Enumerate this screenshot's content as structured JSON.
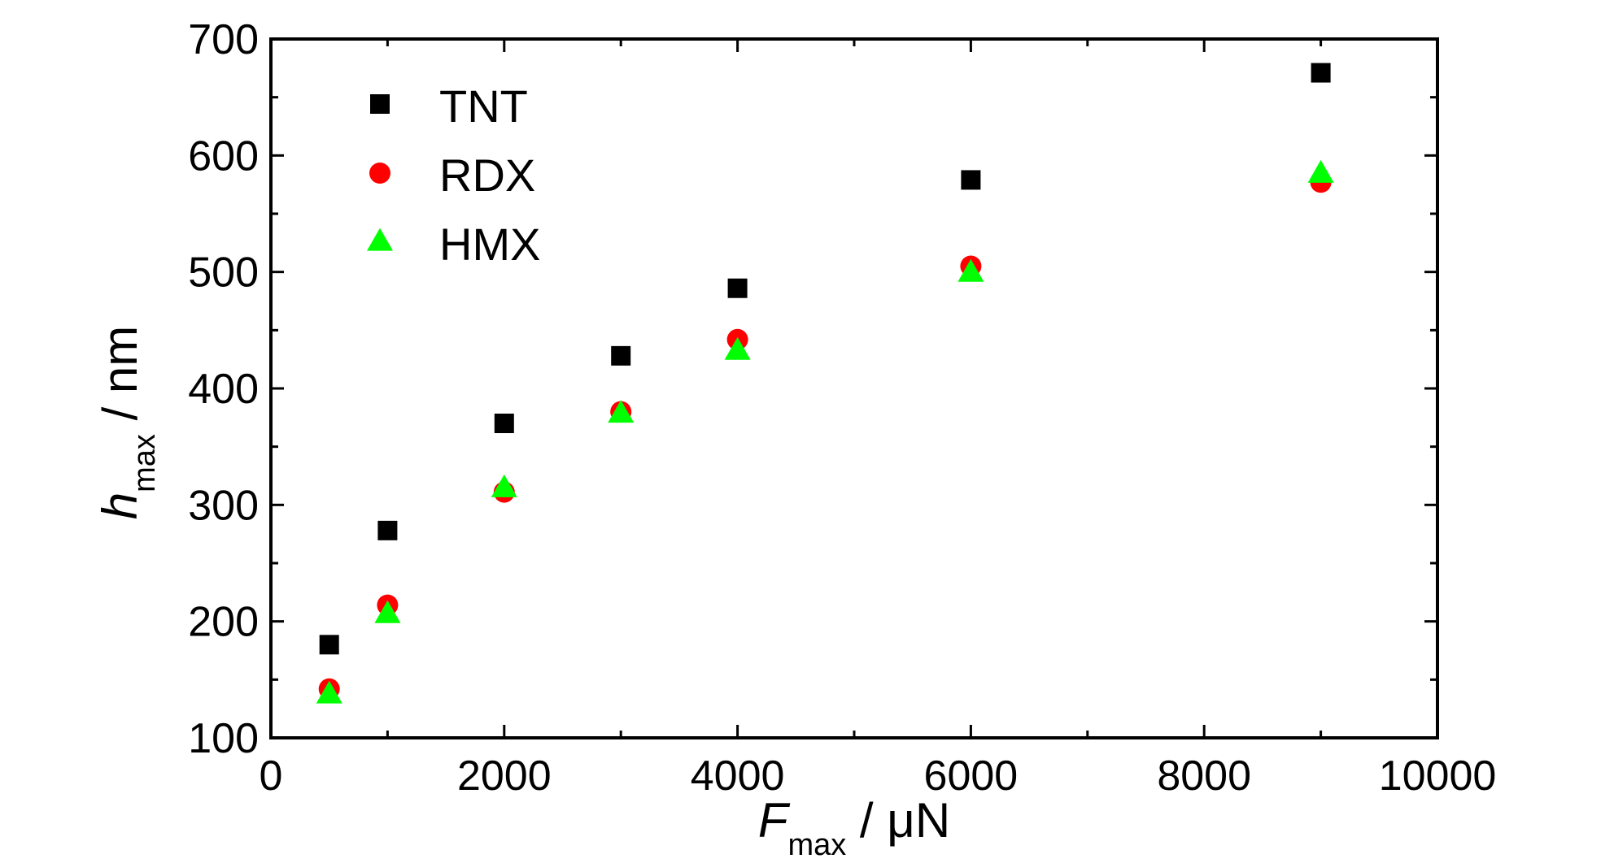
{
  "chart_data": {
    "type": "scatter",
    "title": "",
    "xlabel": {
      "main": "F",
      "sub": "max",
      "unit": " / μN"
    },
    "ylabel": {
      "main": "h",
      "sub": "max",
      "unit": " / nm"
    },
    "xlim": [
      0,
      10000
    ],
    "ylim": [
      100,
      700
    ],
    "xticks": [
      0,
      2000,
      4000,
      6000,
      8000,
      10000
    ],
    "xticks_minor": [
      1000,
      3000,
      5000,
      7000,
      9000
    ],
    "yticks": [
      100,
      200,
      300,
      400,
      500,
      600,
      700
    ],
    "yticks_minor": [
      150,
      250,
      350,
      450,
      550,
      650
    ],
    "grid": false,
    "legend_position": "top-left",
    "x": [
      500,
      1000,
      2000,
      3000,
      4000,
      6000,
      9000
    ],
    "series": [
      {
        "name": "TNT",
        "marker": "square",
        "color": "#000000",
        "values": [
          180,
          278,
          370,
          428,
          486,
          579,
          671
        ]
      },
      {
        "name": "RDX",
        "marker": "circle",
        "color": "#ff0000",
        "values": [
          142,
          214,
          311,
          380,
          442,
          505,
          577
        ]
      },
      {
        "name": "HMX",
        "marker": "triangle",
        "color": "#00ff00",
        "values": [
          137,
          206,
          314,
          378,
          432,
          499,
          584
        ]
      }
    ]
  }
}
